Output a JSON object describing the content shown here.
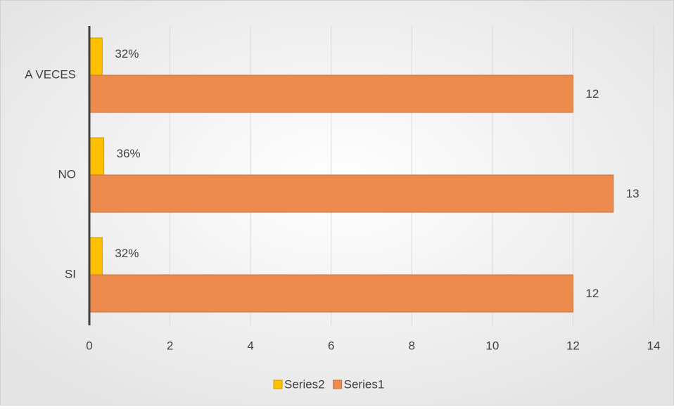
{
  "chart_data": {
    "type": "hbar",
    "categories": [
      "SI",
      "NO",
      "A VECES"
    ],
    "series": [
      {
        "name": "Series2",
        "color": "#ffc000",
        "values": [
          0.32,
          0.36,
          0.32
        ],
        "value_labels": [
          "32%",
          "36%",
          "32%"
        ]
      },
      {
        "name": "Series1",
        "color": "#ed8b4e",
        "values": [
          12,
          13,
          12
        ]
      }
    ],
    "xlim": [
      0,
      14
    ],
    "xticks": [
      0,
      2,
      4,
      6,
      8,
      10,
      12,
      14
    ],
    "grid": true,
    "legend": "bottom"
  }
}
